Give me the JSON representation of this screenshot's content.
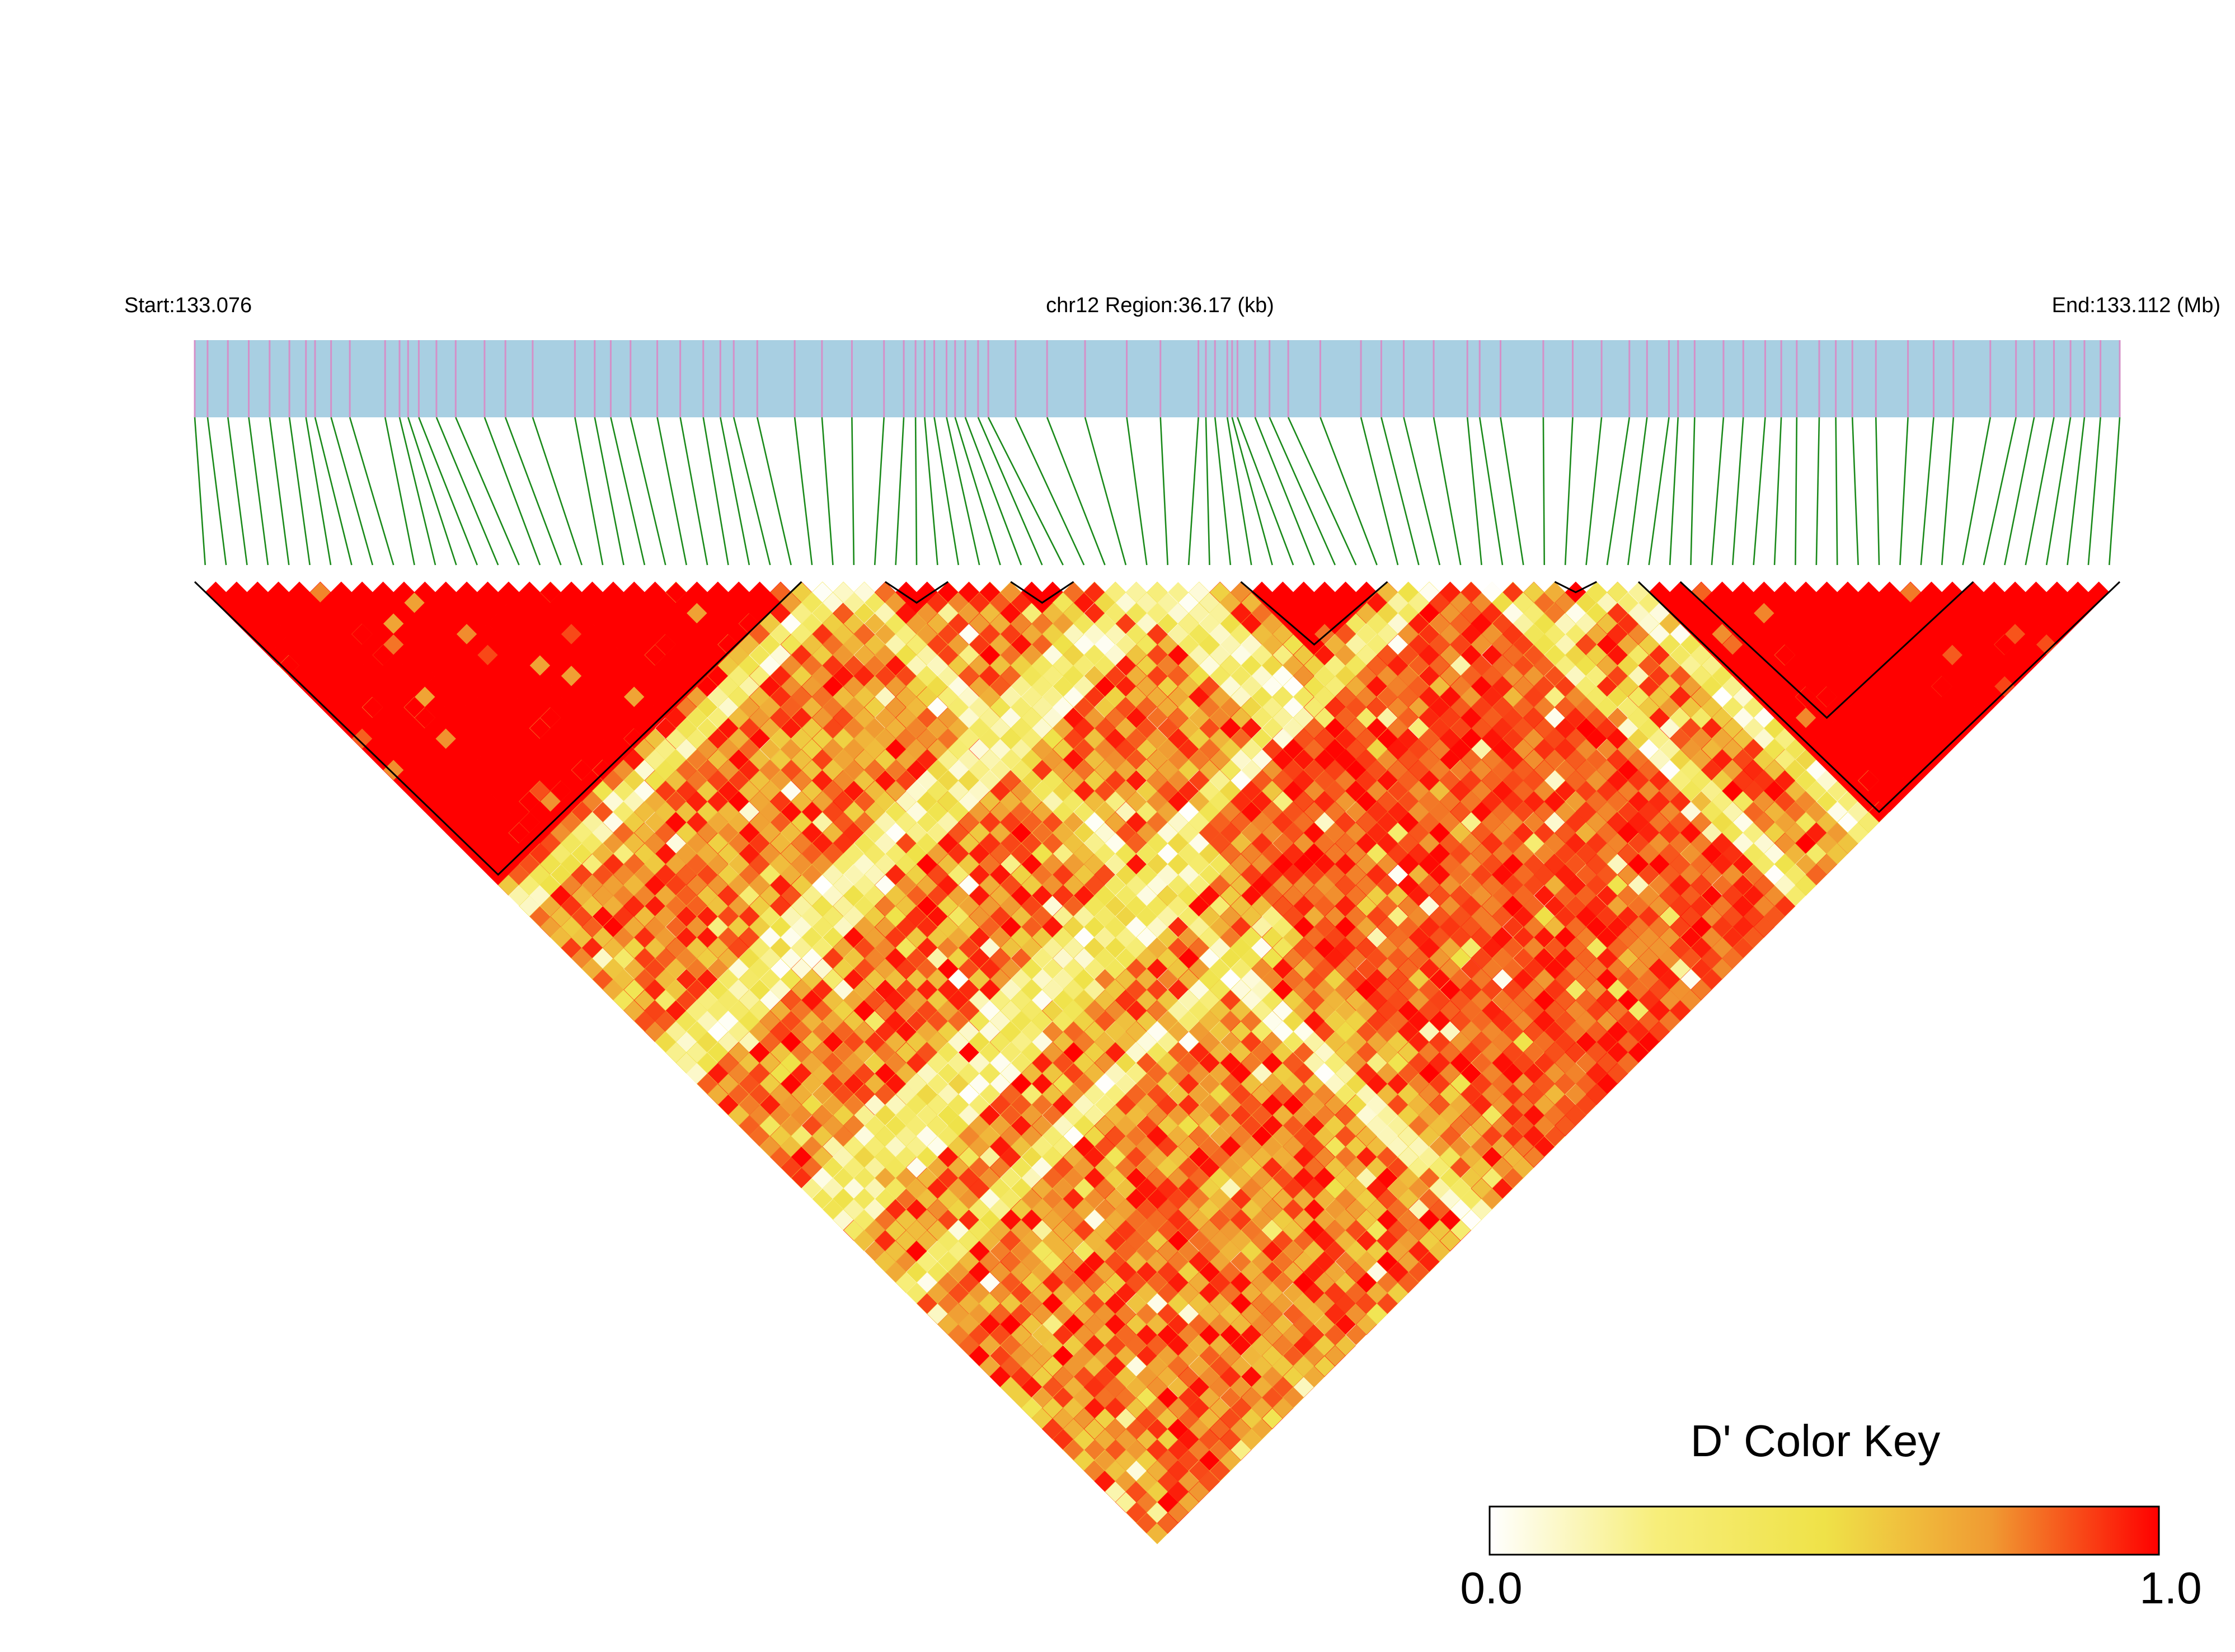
{
  "chart_data": {
    "type": "heatmap",
    "subtype": "linkage-disequilibrium-triangle",
    "chromosome": "chr12",
    "header": {
      "start_label": "Start:133.076",
      "region_label": "chr12 Region:36.17 (kb)",
      "end_label": "End:133.112 (Mb)"
    },
    "region": {
      "start_mb": 133.076,
      "end_mb": 133.112,
      "length_kb": 36.17
    },
    "snp_count": 92,
    "snp_positions_mb": [
      133.076,
      133.07624,
      133.07662,
      133.07701,
      133.0774,
      133.07777,
      133.07808,
      133.07825,
      133.07855,
      133.0789,
      133.07956,
      133.07983,
      133.07999,
      133.08019,
      133.08052,
      133.08088,
      133.08142,
      133.08181,
      133.08232,
      133.08311,
      133.08348,
      133.08378,
      133.08415,
      133.08465,
      133.08508,
      133.08551,
      133.08583,
      133.08608,
      133.08652,
      133.08722,
      133.08773,
      133.08829,
      133.08889,
      133.08926,
      133.08948,
      133.08965,
      133.08983,
      133.09006,
      133.09022,
      133.09041,
      133.09065,
      133.09084,
      133.09135,
      133.09194,
      133.09265,
      133.09343,
      133.09406,
      133.09477,
      133.09491,
      133.09508,
      133.09531,
      133.0954,
      133.0955,
      133.09583,
      133.0961,
      133.09645,
      133.09705,
      133.09781,
      133.09819,
      133.09861,
      133.09917,
      133.0998,
      133.10003,
      133.10042,
      133.10122,
      133.10177,
      133.10231,
      133.10283,
      133.10316,
      133.10357,
      133.10374,
      133.10405,
      133.10459,
      133.10496,
      133.10537,
      133.10567,
      133.10596,
      133.10638,
      133.10669,
      133.107,
      133.10744,
      133.10804,
      133.10852,
      133.10889,
      133.10958,
      133.11006,
      133.1104,
      133.11077,
      133.11108,
      133.11134,
      133.11164,
      133.112
    ],
    "haplotype_blocks": [
      {
        "first_snp": 0,
        "last_snp": 28
      },
      {
        "first_snp": 33,
        "last_snp": 35
      },
      {
        "first_snp": 39,
        "last_snp": 41
      },
      {
        "first_snp": 50,
        "last_snp": 56
      },
      {
        "first_snp": 65,
        "last_snp": 66
      },
      {
        "first_snp": 69,
        "last_snp": 91
      },
      {
        "first_snp": 71,
        "last_snp": 84
      }
    ],
    "ld_matrix_note": "pairwise D' for 92 SNPs (4186 pairs), generated by script from the visible block structure",
    "color_key": {
      "title": "D' Color Key",
      "min_label": "0.0",
      "max_label": "1.0",
      "range": [
        0.0,
        1.0
      ],
      "colors": [
        "#ffffff",
        "#f7ee7a",
        "#efe248",
        "#f09a32",
        "#ff0000"
      ]
    },
    "colors": {
      "track_fill": "#a8cfe2",
      "snp_tick": "#d490c8",
      "connector_line": "#1a8a1a",
      "block_outline": "#000000"
    }
  }
}
